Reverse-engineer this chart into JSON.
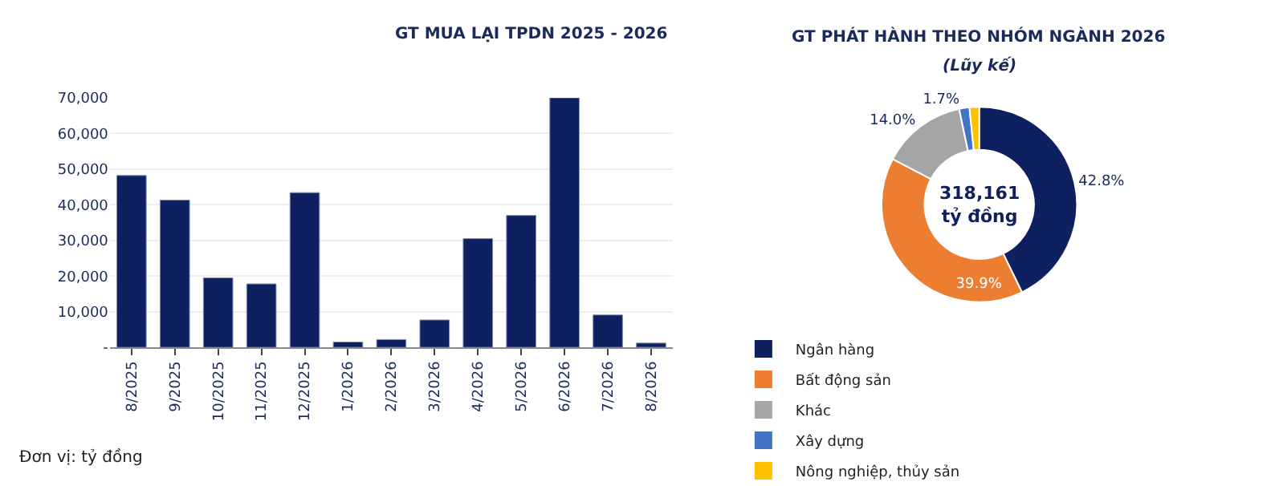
{
  "chart_data": [
    {
      "type": "bar",
      "title": "GT MUA LẠI TPDN 2025 - 2026",
      "categories": [
        "8/2025",
        "9/2025",
        "10/2025",
        "11/2025",
        "12/2025",
        "1/2026",
        "2/2026",
        "3/2026",
        "4/2026",
        "5/2026",
        "6/2026",
        "7/2026",
        "8/2026"
      ],
      "values": [
        48200,
        41300,
        19500,
        17800,
        43400,
        1500,
        2200,
        7700,
        30500,
        37000,
        70000,
        9100,
        1200
      ],
      "color": "#0f2060",
      "ylim": [
        0,
        70000
      ],
      "yticks": [
        {
          "value": 0,
          "label": "-"
        },
        {
          "value": 10000,
          "label": "10,000"
        },
        {
          "value": 20000,
          "label": "20,000"
        },
        {
          "value": 30000,
          "label": "30,000"
        },
        {
          "value": 40000,
          "label": "40,000"
        },
        {
          "value": 50000,
          "label": "50,000"
        },
        {
          "value": 60000,
          "label": "60,000"
        },
        {
          "value": 70000,
          "label": "70,000"
        }
      ],
      "grid": "y",
      "legend": false,
      "annotations": [
        "Đơn vị: tỷ đồng"
      ]
    },
    {
      "type": "donut",
      "title": "GT PHÁT HÀNH THEO NHÓM NGÀNH 2026",
      "subtitle": "(Lũy kế)",
      "categories": [
        "Ngân hàng",
        "Bất động sản",
        "Khác",
        "Xây dựng",
        "Nông nghiệp, thủy sản"
      ],
      "values": [
        42.8,
        39.9,
        14.0,
        1.7,
        1.6
      ],
      "colors": [
        "#0f2060",
        "#ed7d31",
        "#a5a5a5",
        "#4472c4",
        "#ffc000"
      ],
      "value_labels": [
        "42.8%",
        "39.9%",
        "14.0%",
        "1.7%",
        null
      ],
      "legend": "bottom",
      "annotations": [
        "318,161\ntỷ đồng"
      ]
    }
  ]
}
